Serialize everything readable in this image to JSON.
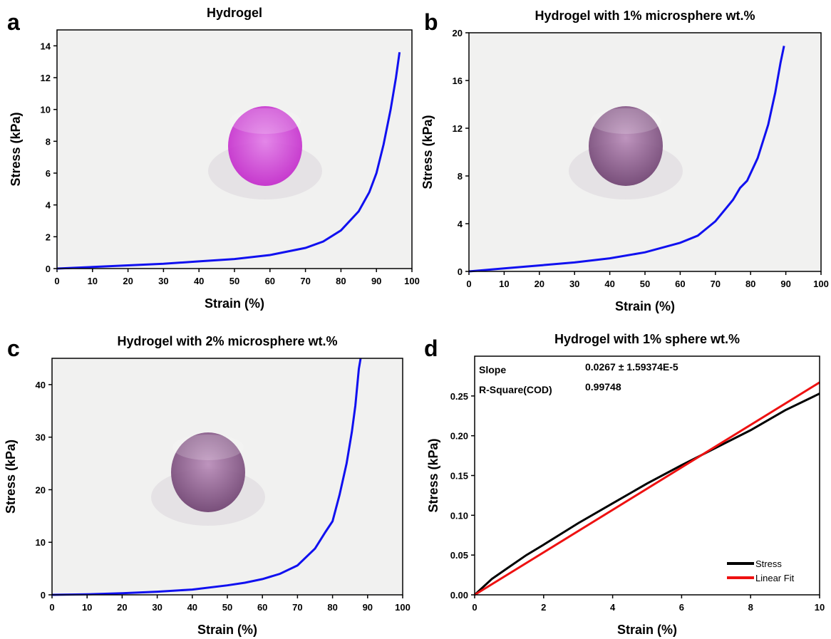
{
  "chart_data": [
    {
      "type": "line",
      "panel": "a",
      "title": "Hydrogel",
      "xlabel": "Strain (%)",
      "ylabel": "Stress (kPa)",
      "xlim": [
        0,
        100
      ],
      "ylim": [
        0,
        15
      ],
      "xticks": [
        0,
        10,
        20,
        30,
        40,
        50,
        60,
        70,
        80,
        90,
        100
      ],
      "yticks": [
        0,
        2,
        4,
        6,
        8,
        10,
        12,
        14
      ],
      "series": [
        {
          "color": "#1010f0",
          "x": [
            0,
            10,
            20,
            30,
            40,
            50,
            60,
            70,
            75,
            80,
            85,
            88,
            90,
            92,
            94,
            95.5,
            96.5
          ],
          "values": [
            0,
            0.1,
            0.2,
            0.3,
            0.45,
            0.6,
            0.85,
            1.3,
            1.7,
            2.4,
            3.6,
            4.8,
            6,
            7.8,
            10,
            12,
            13.6
          ]
        }
      ]
    },
    {
      "type": "line",
      "panel": "b",
      "title": "Hydrogel with 1% microsphere wt.%",
      "xlabel": "Strain (%)",
      "ylabel": "Stress (kPa)",
      "xlim": [
        0,
        100
      ],
      "ylim": [
        0,
        20
      ],
      "xticks": [
        0,
        10,
        20,
        30,
        40,
        50,
        60,
        70,
        80,
        90,
        100
      ],
      "yticks": [
        0,
        4,
        8,
        12,
        16,
        20
      ],
      "series": [
        {
          "color": "#1010f0",
          "x": [
            0,
            10,
            20,
            30,
            40,
            50,
            60,
            65,
            70,
            75,
            77,
            79,
            82,
            85,
            87,
            88.5,
            89.5
          ],
          "values": [
            0,
            0.25,
            0.5,
            0.75,
            1.1,
            1.6,
            2.4,
            3.0,
            4.2,
            6.0,
            7.0,
            7.6,
            9.5,
            12.3,
            15,
            17.5,
            18.9
          ]
        }
      ]
    },
    {
      "type": "line",
      "panel": "c",
      "title": "Hydrogel with 2% microsphere wt.%",
      "xlabel": "Strain (%)",
      "ylabel": "Stress (kPa)",
      "xlim": [
        0,
        100
      ],
      "ylim": [
        0,
        45
      ],
      "xticks": [
        0,
        10,
        20,
        30,
        40,
        50,
        60,
        70,
        80,
        90,
        100
      ],
      "yticks": [
        0,
        10,
        20,
        30,
        40
      ],
      "series": [
        {
          "color": "#1010f0",
          "x": [
            0,
            10,
            20,
            30,
            40,
            50,
            55,
            60,
            65,
            70,
            75,
            78,
            80,
            82,
            84,
            85.5,
            86.5,
            87.5,
            88
          ],
          "values": [
            0,
            0.1,
            0.3,
            0.6,
            1.0,
            1.8,
            2.3,
            3.0,
            4.0,
            5.6,
            8.8,
            12,
            14,
            19,
            25,
            31,
            36,
            43,
            45
          ]
        }
      ]
    },
    {
      "type": "line",
      "panel": "d",
      "title": "Hydrogel with 1% sphere wt.%",
      "xlabel": "Strain (%)",
      "ylabel": "Stress (kPa)",
      "xlim": [
        0,
        10
      ],
      "ylim": [
        0,
        0.3
      ],
      "xticks": [
        0,
        2,
        4,
        6,
        8,
        10
      ],
      "yticks": [
        {
          "value": 0,
          "label": "0.00"
        },
        {
          "value": 0.05,
          "label": "0.05"
        },
        {
          "value": 0.1,
          "label": "0.10"
        },
        {
          "value": 0.15,
          "label": "0.15"
        },
        {
          "value": 0.2,
          "label": "0.20"
        },
        {
          "value": 0.25,
          "label": "0.25"
        }
      ],
      "annotations": [
        [
          "Slope",
          "0.0267 ± 1.59374E-5"
        ],
        [
          "R-Square(COD)",
          "0.99748"
        ]
      ],
      "legend": "lower right",
      "series": [
        {
          "name": "Stress",
          "color": "#000000",
          "x": [
            0,
            0.5,
            1,
            1.5,
            2,
            3,
            4,
            5,
            6,
            7,
            8,
            9,
            10
          ],
          "values": [
            0,
            0.02,
            0.035,
            0.05,
            0.063,
            0.09,
            0.115,
            0.14,
            0.163,
            0.185,
            0.207,
            0.232,
            0.253
          ]
        },
        {
          "name": "Linear Fit",
          "color": "#ee1111",
          "x": [
            0,
            10
          ],
          "values": [
            0,
            0.267
          ]
        }
      ]
    }
  ]
}
